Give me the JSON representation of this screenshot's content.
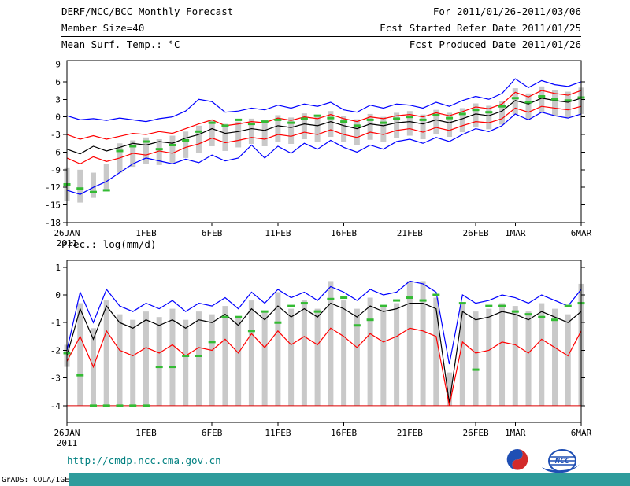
{
  "header": {
    "left": [
      "DERF/NCC/BCC Monthly Forecast",
      "Member Size=40",
      "Mean Surf. Temp.: °C"
    ],
    "right": [
      "For 2011/01/26-2011/03/06",
      "Fcst Started Refer Date 2011/01/25",
      "Fcst Produced Date 2011/01/26"
    ]
  },
  "footer": {
    "url": "http://cmdp.ncc.cma.gov.cn",
    "logos": [
      "BCC",
      "NCC"
    ],
    "statusbar": "GrADS: COLA/IGES"
  },
  "colors": {
    "statusbar_teal": "#2f9c9c",
    "url_teal": "#008080",
    "bar_gray": "#c9c9c9",
    "obs_green": "#33bb33",
    "line_blue": "#0000ff",
    "line_red": "#ff0000",
    "line_black": "#000000"
  },
  "chart_data": [
    {
      "type": "line",
      "title": "Mean Surf. Temp.: °C",
      "xlabel": "",
      "ylabel": "°C",
      "n": 40,
      "ylim": [
        -18,
        9.6
      ],
      "yticks": [
        9,
        6,
        3,
        0,
        -3,
        -6,
        -9,
        -12,
        -15,
        -18
      ],
      "xticks": [
        {
          "i": 0,
          "label": "26JAN",
          "sub": "2011"
        },
        {
          "i": 6,
          "label": "1FEB"
        },
        {
          "i": 11,
          "label": "6FEB"
        },
        {
          "i": 16,
          "label": "11FEB"
        },
        {
          "i": 21,
          "label": "16FEB"
        },
        {
          "i": 26,
          "label": "21FEB"
        },
        {
          "i": 31,
          "label": "26FEB"
        },
        {
          "i": 34,
          "label": "1MAR"
        },
        {
          "i": 39,
          "label": "6MAR"
        }
      ],
      "series": [
        {
          "name": "ensemble-max",
          "color": "#0000ff",
          "values": [
            0.2,
            -0.5,
            -0.3,
            -0.6,
            -0.2,
            -0.5,
            -0.8,
            -0.3,
            0.0,
            1.0,
            3.0,
            2.6,
            0.8,
            1.0,
            1.5,
            1.2,
            2.0,
            1.5,
            2.2,
            1.8,
            2.5,
            1.2,
            0.8,
            2.0,
            1.5,
            2.2,
            2.0,
            1.5,
            2.5,
            1.8,
            2.8,
            3.5,
            3.0,
            4.0,
            6.5,
            5.0,
            6.2,
            5.5,
            5.2,
            6.0
          ]
        },
        {
          "name": "upper-spread",
          "color": "#ff0000",
          "values": [
            -3.0,
            -3.8,
            -3.2,
            -3.8,
            -3.3,
            -2.8,
            -3.0,
            -2.5,
            -2.8,
            -2.0,
            -1.2,
            -0.5,
            -1.5,
            -1.2,
            -0.8,
            -1.0,
            -0.2,
            -0.6,
            0.0,
            -0.3,
            0.4,
            -0.3,
            -0.8,
            0.0,
            -0.3,
            0.2,
            0.4,
            0.0,
            0.7,
            0.2,
            0.9,
            1.7,
            1.4,
            2.2,
            4.2,
            3.4,
            4.5,
            4.0,
            3.7,
            4.5
          ]
        },
        {
          "name": "ensemble-mean",
          "color": "#000000",
          "values": [
            -5.5,
            -6.3,
            -5.0,
            -5.8,
            -5.2,
            -4.5,
            -4.8,
            -4.2,
            -4.5,
            -3.6,
            -3.0,
            -2.0,
            -2.8,
            -2.5,
            -2.0,
            -2.3,
            -1.5,
            -1.8,
            -1.2,
            -1.5,
            -0.8,
            -1.5,
            -2.0,
            -1.2,
            -1.5,
            -1.0,
            -0.8,
            -1.2,
            -0.5,
            -1.0,
            -0.3,
            0.5,
            0.2,
            1.0,
            2.8,
            2.2,
            3.2,
            2.8,
            2.5,
            3.2
          ]
        },
        {
          "name": "lower-spread",
          "color": "#ff0000",
          "values": [
            -7.0,
            -8.0,
            -6.8,
            -7.6,
            -7.0,
            -6.2,
            -6.5,
            -5.8,
            -6.2,
            -5.2,
            -4.6,
            -3.6,
            -4.4,
            -4.0,
            -3.5,
            -3.8,
            -3.0,
            -3.3,
            -2.6,
            -3.0,
            -2.2,
            -3.0,
            -3.5,
            -2.6,
            -3.0,
            -2.3,
            -2.0,
            -2.6,
            -1.8,
            -2.3,
            -1.5,
            -0.8,
            -1.0,
            -0.3,
            1.5,
            0.8,
            1.8,
            1.5,
            1.2,
            1.8
          ]
        },
        {
          "name": "ensemble-min",
          "color": "#0000ff",
          "values": [
            -12.5,
            -13.2,
            -12.0,
            -11.0,
            -9.5,
            -8.0,
            -7.0,
            -7.5,
            -8.0,
            -7.2,
            -7.8,
            -6.5,
            -7.5,
            -7.0,
            -4.8,
            -7.0,
            -5.0,
            -6.2,
            -4.5,
            -5.5,
            -4.0,
            -5.2,
            -6.0,
            -4.8,
            -5.5,
            -4.2,
            -3.8,
            -4.5,
            -3.5,
            -4.2,
            -3.0,
            -2.0,
            -2.5,
            -1.5,
            0.5,
            -0.5,
            0.8,
            0.2,
            -0.2,
            0.5
          ]
        }
      ],
      "bars": {
        "color": "#c9c9c9",
        "low": [
          -14.3,
          -14.6,
          -13.8,
          -12.5,
          -9.5,
          -8.5,
          -8.0,
          -8.2,
          -7.8,
          -7.0,
          -6.2,
          -5.0,
          -5.8,
          -5.2,
          -4.6,
          -5.0,
          -4.2,
          -4.6,
          -3.8,
          -4.2,
          -3.4,
          -4.2,
          -4.8,
          -3.9,
          -4.3,
          -3.6,
          -3.2,
          -3.8,
          -2.9,
          -3.4,
          -2.6,
          -1.8,
          -2.1,
          -1.3,
          0.4,
          -0.4,
          0.7,
          0.2,
          -0.1,
          0.5
        ],
        "high": [
          -8.6,
          -9.0,
          -9.5,
          -8.0,
          -4.5,
          -4.0,
          -3.5,
          -3.8,
          -3.2,
          -2.5,
          -1.5,
          -0.5,
          -1.2,
          -0.8,
          -0.3,
          -0.6,
          0.3,
          -0.1,
          0.6,
          0.2,
          1.0,
          0.1,
          -0.4,
          0.5,
          0.0,
          0.7,
          1.0,
          0.4,
          1.2,
          0.7,
          1.5,
          2.3,
          1.9,
          2.7,
          4.9,
          4.0,
          5.2,
          4.6,
          4.3,
          5.0
        ]
      },
      "obs": {
        "name": "observation",
        "color": "#33bb33",
        "values": [
          -11.5,
          -12.2,
          -12.8,
          -12.5,
          -5.8,
          -5.0,
          -4.2,
          -5.5,
          -4.8,
          -4.0,
          -2.5,
          -1.0,
          -1.5,
          -0.5,
          -1.2,
          -0.8,
          -0.5,
          -1.0,
          -0.3,
          0.2,
          -0.2,
          -0.8,
          -1.5,
          -0.5,
          -1.0,
          -0.3,
          0.0,
          -0.5,
          0.3,
          -0.2,
          0.5,
          1.2,
          0.8,
          1.8,
          3.2,
          2.5,
          3.5,
          3.0,
          2.8,
          3.3
        ]
      }
    },
    {
      "type": "line",
      "title": "Prec.: log(mm/d)",
      "xlabel": "",
      "ylabel": "log(mm/d)",
      "n": 40,
      "ylim": [
        -4.6,
        1.25
      ],
      "yticks": [
        1,
        0,
        -1,
        -2,
        -3,
        -4
      ],
      "xticks": [
        {
          "i": 0,
          "label": "26JAN",
          "sub": "2011"
        },
        {
          "i": 6,
          "label": "1FEB"
        },
        {
          "i": 11,
          "label": "6FEB"
        },
        {
          "i": 16,
          "label": "11FEB"
        },
        {
          "i": 21,
          "label": "16FEB"
        },
        {
          "i": 26,
          "label": "21FEB"
        },
        {
          "i": 31,
          "label": "26FEB"
        },
        {
          "i": 34,
          "label": "1MAR"
        },
        {
          "i": 39,
          "label": "6MAR"
        }
      ],
      "baseline": {
        "value": -4,
        "color": "#dd0000"
      },
      "series": [
        {
          "name": "ensemble-max",
          "color": "#0000ff",
          "values": [
            -2.0,
            0.1,
            -1.0,
            0.2,
            -0.4,
            -0.6,
            -0.3,
            -0.5,
            -0.2,
            -0.6,
            -0.3,
            -0.4,
            -0.1,
            -0.5,
            0.1,
            -0.3,
            0.2,
            -0.1,
            0.1,
            -0.2,
            0.3,
            0.1,
            -0.2,
            0.2,
            0.0,
            0.1,
            0.5,
            0.4,
            0.1,
            -2.5,
            0.0,
            -0.3,
            -0.2,
            0.0,
            -0.1,
            -0.3,
            0.0,
            -0.2,
            -0.4,
            0.2
          ]
        },
        {
          "name": "ensemble-mean",
          "color": "#000000",
          "values": [
            -2.2,
            -0.5,
            -1.6,
            -0.4,
            -1.0,
            -1.2,
            -0.9,
            -1.1,
            -0.9,
            -1.2,
            -0.9,
            -1.0,
            -0.7,
            -1.1,
            -0.5,
            -0.9,
            -0.4,
            -0.8,
            -0.5,
            -0.8,
            -0.3,
            -0.5,
            -0.8,
            -0.4,
            -0.6,
            -0.5,
            -0.3,
            -0.3,
            -0.5,
            -3.9,
            -0.6,
            -0.9,
            -0.8,
            -0.6,
            -0.7,
            -0.9,
            -0.6,
            -0.8,
            -1.0,
            -0.6
          ]
        },
        {
          "name": "lower-spread",
          "color": "#ff0000",
          "values": [
            -2.4,
            -1.5,
            -2.6,
            -1.3,
            -2.0,
            -2.2,
            -1.9,
            -2.1,
            -1.8,
            -2.2,
            -1.9,
            -2.0,
            -1.6,
            -2.1,
            -1.4,
            -1.9,
            -1.3,
            -1.8,
            -1.5,
            -1.8,
            -1.2,
            -1.5,
            -1.9,
            -1.4,
            -1.7,
            -1.5,
            -1.2,
            -1.3,
            -1.5,
            -4.0,
            -1.7,
            -2.1,
            -2.0,
            -1.7,
            -1.8,
            -2.1,
            -1.6,
            -1.9,
            -2.2,
            -1.3
          ]
        }
      ],
      "bars": {
        "color": "#c9c9c9",
        "low": [
          -2.6,
          -4,
          -4,
          -4,
          -4,
          -4,
          -4,
          -4,
          -4,
          -4,
          -4,
          -4,
          -4,
          -4,
          -4,
          -4,
          -4,
          -4,
          -4,
          -4,
          -4,
          -4,
          -4,
          -4,
          -4,
          -4,
          -4,
          -4,
          -4,
          -4,
          -4,
          -4,
          -4,
          -4,
          -4,
          -4,
          -4,
          -4,
          -4,
          -4
        ],
        "high": [
          -1.8,
          -0.3,
          -1.2,
          -0.2,
          -0.7,
          -0.9,
          -0.6,
          -0.8,
          -0.5,
          -0.9,
          -0.6,
          -0.7,
          -0.4,
          -0.8,
          -0.2,
          -0.6,
          0.1,
          -0.5,
          -0.2,
          -0.5,
          0.5,
          -0.2,
          -0.5,
          -0.1,
          -0.4,
          -0.3,
          0.5,
          0.5,
          -0.1,
          -2.8,
          -0.3,
          -0.6,
          -0.5,
          -0.3,
          -0.4,
          -0.6,
          -0.3,
          -0.5,
          -0.7,
          0.4
        ]
      },
      "obs": {
        "name": "observation",
        "color": "#33bb33",
        "values": [
          -2.1,
          -2.9,
          -4.0,
          -4.0,
          -4.0,
          -4.0,
          -4.0,
          -2.6,
          -2.6,
          -2.2,
          -2.2,
          -1.7,
          -0.8,
          -0.8,
          -1.3,
          -0.6,
          -1.0,
          -0.4,
          -0.3,
          -0.6,
          -0.15,
          -0.1,
          -1.1,
          -0.9,
          -0.4,
          -0.2,
          -0.1,
          -0.2,
          0.0,
          null,
          -0.3,
          -2.7,
          -0.4,
          -0.4,
          -0.6,
          -0.7,
          -0.8,
          -0.9,
          -0.4,
          -0.3
        ]
      }
    }
  ]
}
